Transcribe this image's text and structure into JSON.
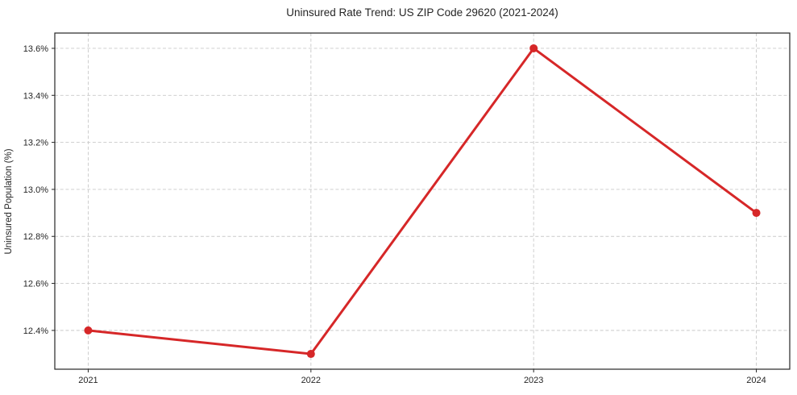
{
  "chart_data": {
    "type": "line",
    "title": "Uninsured Rate Trend: US ZIP Code 29620 (2021-2024)",
    "xlabel": "",
    "ylabel": "Uninsured Population (%)",
    "x": [
      2021,
      2022,
      2023,
      2024
    ],
    "values": [
      12.4,
      12.3,
      13.6,
      12.9
    ],
    "xticks": [
      2021,
      2022,
      2023,
      2024
    ],
    "xtick_labels": [
      "2021",
      "2022",
      "2023",
      "2024"
    ],
    "yticks": [
      12.4,
      12.6,
      12.8,
      13.0,
      13.2,
      13.4,
      13.6
    ],
    "ytick_labels": [
      "12.4%",
      "12.6%",
      "12.8%",
      "13.0%",
      "13.2%",
      "13.4%",
      "13.6%"
    ],
    "xlim": [
      2020.85,
      2024.15
    ],
    "ylim": [
      12.235,
      13.665
    ],
    "grid": true,
    "grid_style": "dashed",
    "legend_position": "none",
    "line_color": "#d62728",
    "marker": "circle",
    "marker_color": "#d62728",
    "grid_color": "#c9c9c9",
    "frame_color": "#262626",
    "text_color": "#262626",
    "background_color": "#ffffff"
  }
}
